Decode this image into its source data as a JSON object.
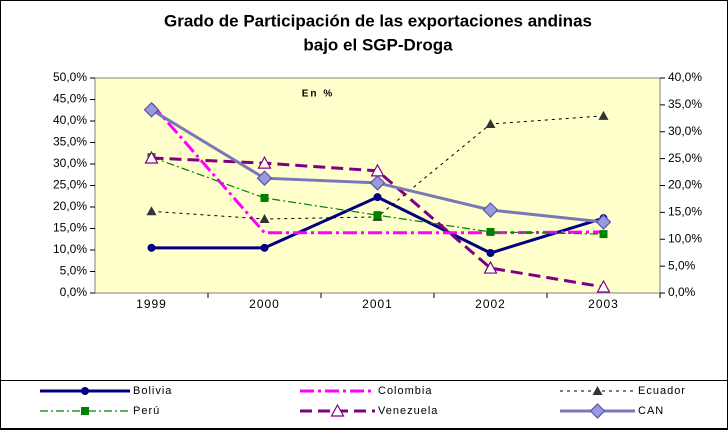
{
  "chart_data": {
    "type": "line",
    "title": [
      "Grado de Participación de las exportaciones andinas",
      "bajo el SGP-Droga"
    ],
    "annotation": "En %",
    "categories": [
      "1999",
      "2000",
      "2001",
      "2002",
      "2003"
    ],
    "ylim": [
      0,
      50
    ],
    "yticks": [
      {
        "value": 0,
        "label": "0,0%"
      },
      {
        "value": 5,
        "label": "5,0%"
      },
      {
        "value": 10,
        "label": "10,0%"
      },
      {
        "value": 15,
        "label": "15,0%"
      },
      {
        "value": 20,
        "label": "20,0%"
      },
      {
        "value": 25,
        "label": "25,0%"
      },
      {
        "value": 30,
        "label": "30,0%"
      },
      {
        "value": 35,
        "label": "35,0%"
      },
      {
        "value": 40,
        "label": "40,0%"
      },
      {
        "value": 45,
        "label": "45,0%"
      },
      {
        "value": 50,
        "label": "50,0%"
      }
    ],
    "y2lim": [
      0,
      40
    ],
    "y2ticks": [
      {
        "value": 0,
        "label": "0,0%"
      },
      {
        "value": 5,
        "label": "5,0%"
      },
      {
        "value": 10,
        "label": "10,0%"
      },
      {
        "value": 15,
        "label": "15,0%"
      },
      {
        "value": 20,
        "label": "20,0%"
      },
      {
        "value": 25,
        "label": "25,0%"
      },
      {
        "value": 30,
        "label": "30,0%"
      },
      {
        "value": 35,
        "label": "35,0%"
      },
      {
        "value": 40,
        "label": "40,0%"
      }
    ],
    "legend": "bottom",
    "series": [
      {
        "name": "Bolivia",
        "color": "#000080",
        "dash": "",
        "width": 3,
        "marker": "circle",
        "values": [
          10.5,
          10.5,
          22.3,
          9.3,
          17.4
        ]
      },
      {
        "name": "Colombia",
        "color": "#ff00ff",
        "dash": "14 4 3 4",
        "width": 3,
        "marker": "none",
        "values": [
          44,
          14,
          14,
          14,
          14.2
        ]
      },
      {
        "name": "Ecuador",
        "color": "#000000",
        "dash": "3 4",
        "width": 1,
        "marker": "triangle",
        "values": [
          19,
          17.2,
          17.7,
          39.3,
          41.2
        ]
      },
      {
        "name": "Perú",
        "color": "#008000",
        "dash": "8 3 2 3",
        "width": 1.2,
        "marker": "square",
        "values": [
          31.6,
          22.1,
          18.1,
          14.2,
          13.7
        ]
      },
      {
        "name": "Venezuela",
        "color": "#800080",
        "dash": "12 6",
        "width": 3,
        "marker": "triangle-open",
        "values": [
          31.4,
          30.2,
          28.4,
          5.8,
          1.4
        ]
      },
      {
        "name": "CAN",
        "color": "#7878b8",
        "dash": "",
        "width": 3,
        "marker": "diamond",
        "values": [
          42.6,
          26.7,
          25.6,
          19.3,
          16.5
        ]
      }
    ]
  }
}
